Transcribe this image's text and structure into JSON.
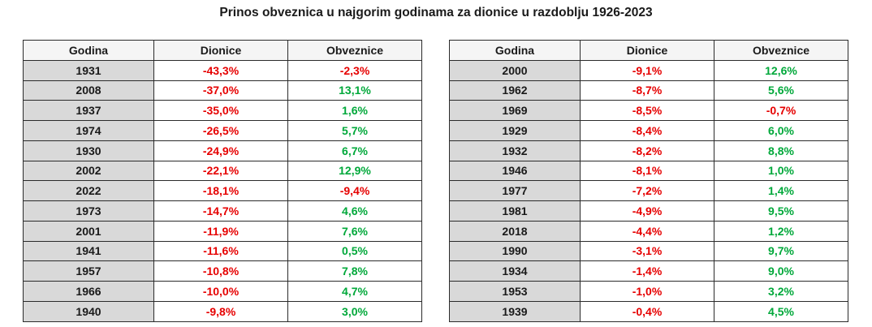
{
  "title": "Prinos obveznica u najgorim godinama za dionice u razdoblju 1926-2023",
  "colors": {
    "negative": "#e60000",
    "positive": "#00a83a",
    "year_cell_bg": "#d9d9d9",
    "header_bg": "#f5f5f5"
  },
  "tables": [
    {
      "headers": [
        "Godina",
        "Dionice",
        "Obveznice"
      ],
      "rows": [
        {
          "year": "1931",
          "stocks": "-43,3%",
          "bonds": "-2,3%"
        },
        {
          "year": "2008",
          "stocks": "-37,0%",
          "bonds": "13,1%"
        },
        {
          "year": "1937",
          "stocks": "-35,0%",
          "bonds": "1,6%"
        },
        {
          "year": "1974",
          "stocks": "-26,5%",
          "bonds": "5,7%"
        },
        {
          "year": "1930",
          "stocks": "-24,9%",
          "bonds": "6,7%"
        },
        {
          "year": "2002",
          "stocks": "-22,1%",
          "bonds": "12,9%"
        },
        {
          "year": "2022",
          "stocks": "-18,1%",
          "bonds": "-9,4%"
        },
        {
          "year": "1973",
          "stocks": "-14,7%",
          "bonds": "4,6%"
        },
        {
          "year": "2001",
          "stocks": "-11,9%",
          "bonds": "7,6%"
        },
        {
          "year": "1941",
          "stocks": "-11,6%",
          "bonds": "0,5%"
        },
        {
          "year": "1957",
          "stocks": "-10,8%",
          "bonds": "7,8%"
        },
        {
          "year": "1966",
          "stocks": "-10,0%",
          "bonds": "4,7%"
        },
        {
          "year": "1940",
          "stocks": "-9,8%",
          "bonds": "3,0%"
        }
      ]
    },
    {
      "headers": [
        "Godina",
        "Dionice",
        "Obveznice"
      ],
      "rows": [
        {
          "year": "2000",
          "stocks": "-9,1%",
          "bonds": "12,6%"
        },
        {
          "year": "1962",
          "stocks": "-8,7%",
          "bonds": "5,6%"
        },
        {
          "year": "1969",
          "stocks": "-8,5%",
          "bonds": "-0,7%"
        },
        {
          "year": "1929",
          "stocks": "-8,4%",
          "bonds": "6,0%"
        },
        {
          "year": "1932",
          "stocks": "-8,2%",
          "bonds": "8,8%"
        },
        {
          "year": "1946",
          "stocks": "-8,1%",
          "bonds": "1,0%"
        },
        {
          "year": "1977",
          "stocks": "-7,2%",
          "bonds": "1,4%"
        },
        {
          "year": "1981",
          "stocks": "-4,9%",
          "bonds": "9,5%"
        },
        {
          "year": "2018",
          "stocks": "-4,4%",
          "bonds": "1,2%"
        },
        {
          "year": "1990",
          "stocks": "-3,1%",
          "bonds": "9,7%"
        },
        {
          "year": "1934",
          "stocks": "-1,4%",
          "bonds": "9,0%"
        },
        {
          "year": "1953",
          "stocks": "-1,0%",
          "bonds": "3,2%"
        },
        {
          "year": "1939",
          "stocks": "-0,4%",
          "bonds": "4,5%"
        }
      ]
    }
  ]
}
